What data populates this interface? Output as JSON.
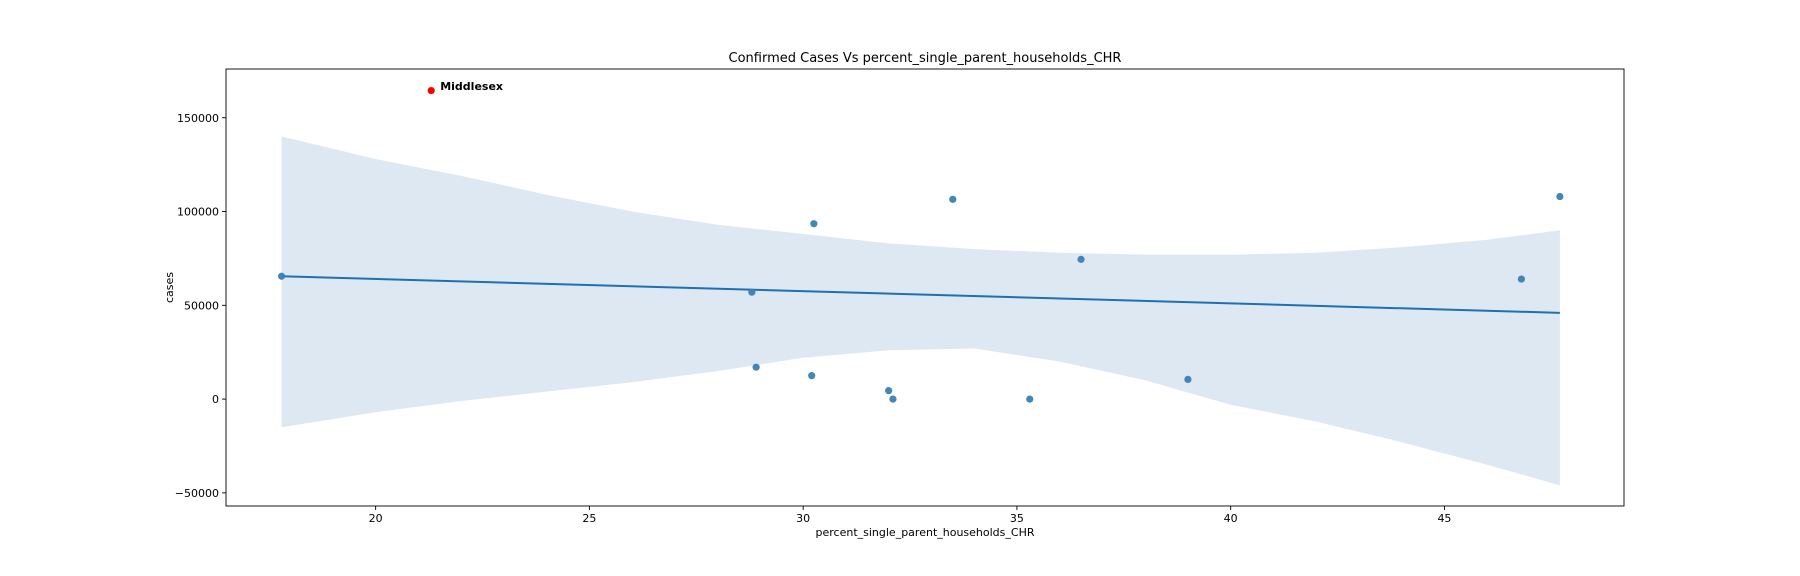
{
  "chart_data": {
    "type": "scatter",
    "title": "Confirmed Cases Vs percent_single_parent_households_CHR",
    "xlabel": "percent_single_parent_households_CHR",
    "ylabel": "cases",
    "xlim": [
      16.5,
      49.2
    ],
    "ylim": [
      -57000,
      176000
    ],
    "xticks": [
      20,
      25,
      30,
      35,
      40,
      45
    ],
    "xtick_labels": [
      "20",
      "25",
      "30",
      "35",
      "40",
      "45"
    ],
    "yticks": [
      -50000,
      0,
      50000,
      100000,
      150000
    ],
    "ytick_labels": [
      "−50000",
      "0",
      "50000",
      "100000",
      "150000"
    ],
    "grid": false,
    "colors": {
      "points": "#3b7fb5",
      "line": "#1f6fb4",
      "band": "#dde8f3",
      "highlight": "#ff0000"
    },
    "points": [
      {
        "x": 17.8,
        "y": 65500
      },
      {
        "x": 28.8,
        "y": 57000
      },
      {
        "x": 28.9,
        "y": 17000
      },
      {
        "x": 30.2,
        "y": 12500
      },
      {
        "x": 30.25,
        "y": 93500
      },
      {
        "x": 32.0,
        "y": 4500
      },
      {
        "x": 32.1,
        "y": 0
      },
      {
        "x": 33.5,
        "y": 106500
      },
      {
        "x": 35.3,
        "y": 0
      },
      {
        "x": 36.5,
        "y": 74500
      },
      {
        "x": 39.0,
        "y": 10500
      },
      {
        "x": 46.8,
        "y": 64000
      },
      {
        "x": 47.7,
        "y": 108000
      }
    ],
    "highlight": {
      "label": "Middlesex",
      "x": 21.3,
      "y": 164500
    },
    "regression": {
      "x": [
        17.8,
        47.7
      ],
      "y": [
        65500,
        46000
      ]
    },
    "confidence_band": {
      "x": [
        17.8,
        20,
        22,
        24,
        26,
        28,
        30,
        32,
        34,
        36,
        38,
        40,
        42,
        44,
        46,
        47.7
      ],
      "upper": [
        140000,
        128000,
        119000,
        109000,
        100000,
        93000,
        88000,
        83000,
        80000,
        78000,
        77000,
        77000,
        78000,
        81000,
        85000,
        90000
      ],
      "lower": [
        -15000,
        -7000,
        -1000,
        4000,
        9000,
        15000,
        22000,
        26000,
        27000,
        20000,
        10000,
        -3000,
        -12000,
        -23000,
        -35000,
        -46000
      ]
    }
  }
}
